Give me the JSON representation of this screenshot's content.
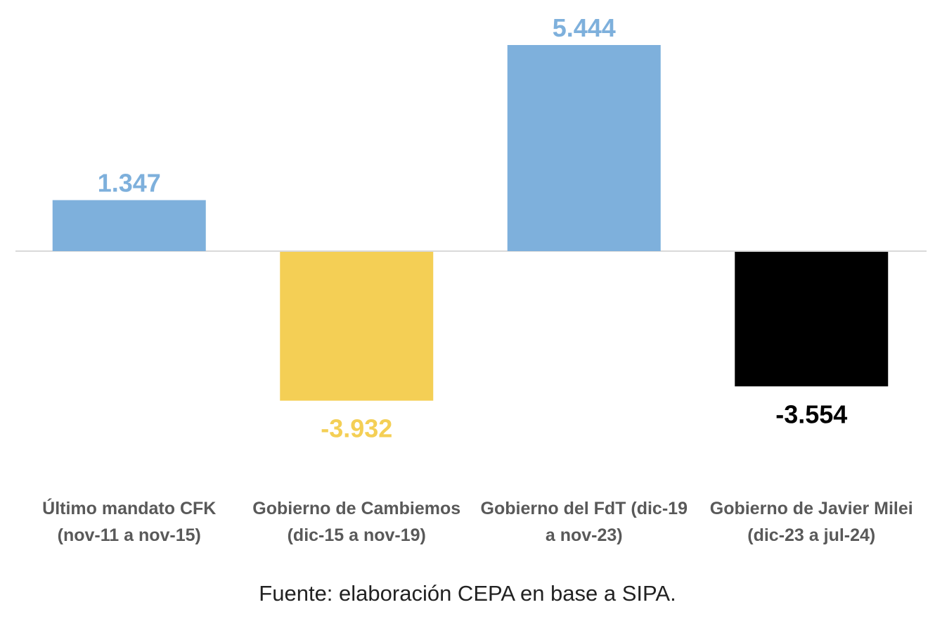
{
  "chart_data": {
    "type": "bar",
    "categories": [
      [
        "Último mandato CFK",
        "(nov-11 a nov-15)"
      ],
      [
        "Gobierno de Cambiemos",
        "(dic-15 a nov-19)"
      ],
      [
        "Gobierno del FdT (dic-19",
        "a nov-23)"
      ],
      [
        "Gobierno de Javier Milei",
        "(dic-23 a jul-24)"
      ]
    ],
    "values": [
      1347,
      -3932,
      5444,
      -3554
    ],
    "value_labels": [
      "1.347",
      "-3.932",
      "5.444",
      "-3.554"
    ],
    "colors": [
      "#7eb0dc",
      "#f4cf55",
      "#7eb0dc",
      "#000000"
    ],
    "label_colors": [
      "#7eb0dc",
      "#f4cf55",
      "#7eb0dc",
      "#000000"
    ],
    "grid": false,
    "legend": "none"
  },
  "source": "Fuente: elaboración CEPA en base a SIPA."
}
